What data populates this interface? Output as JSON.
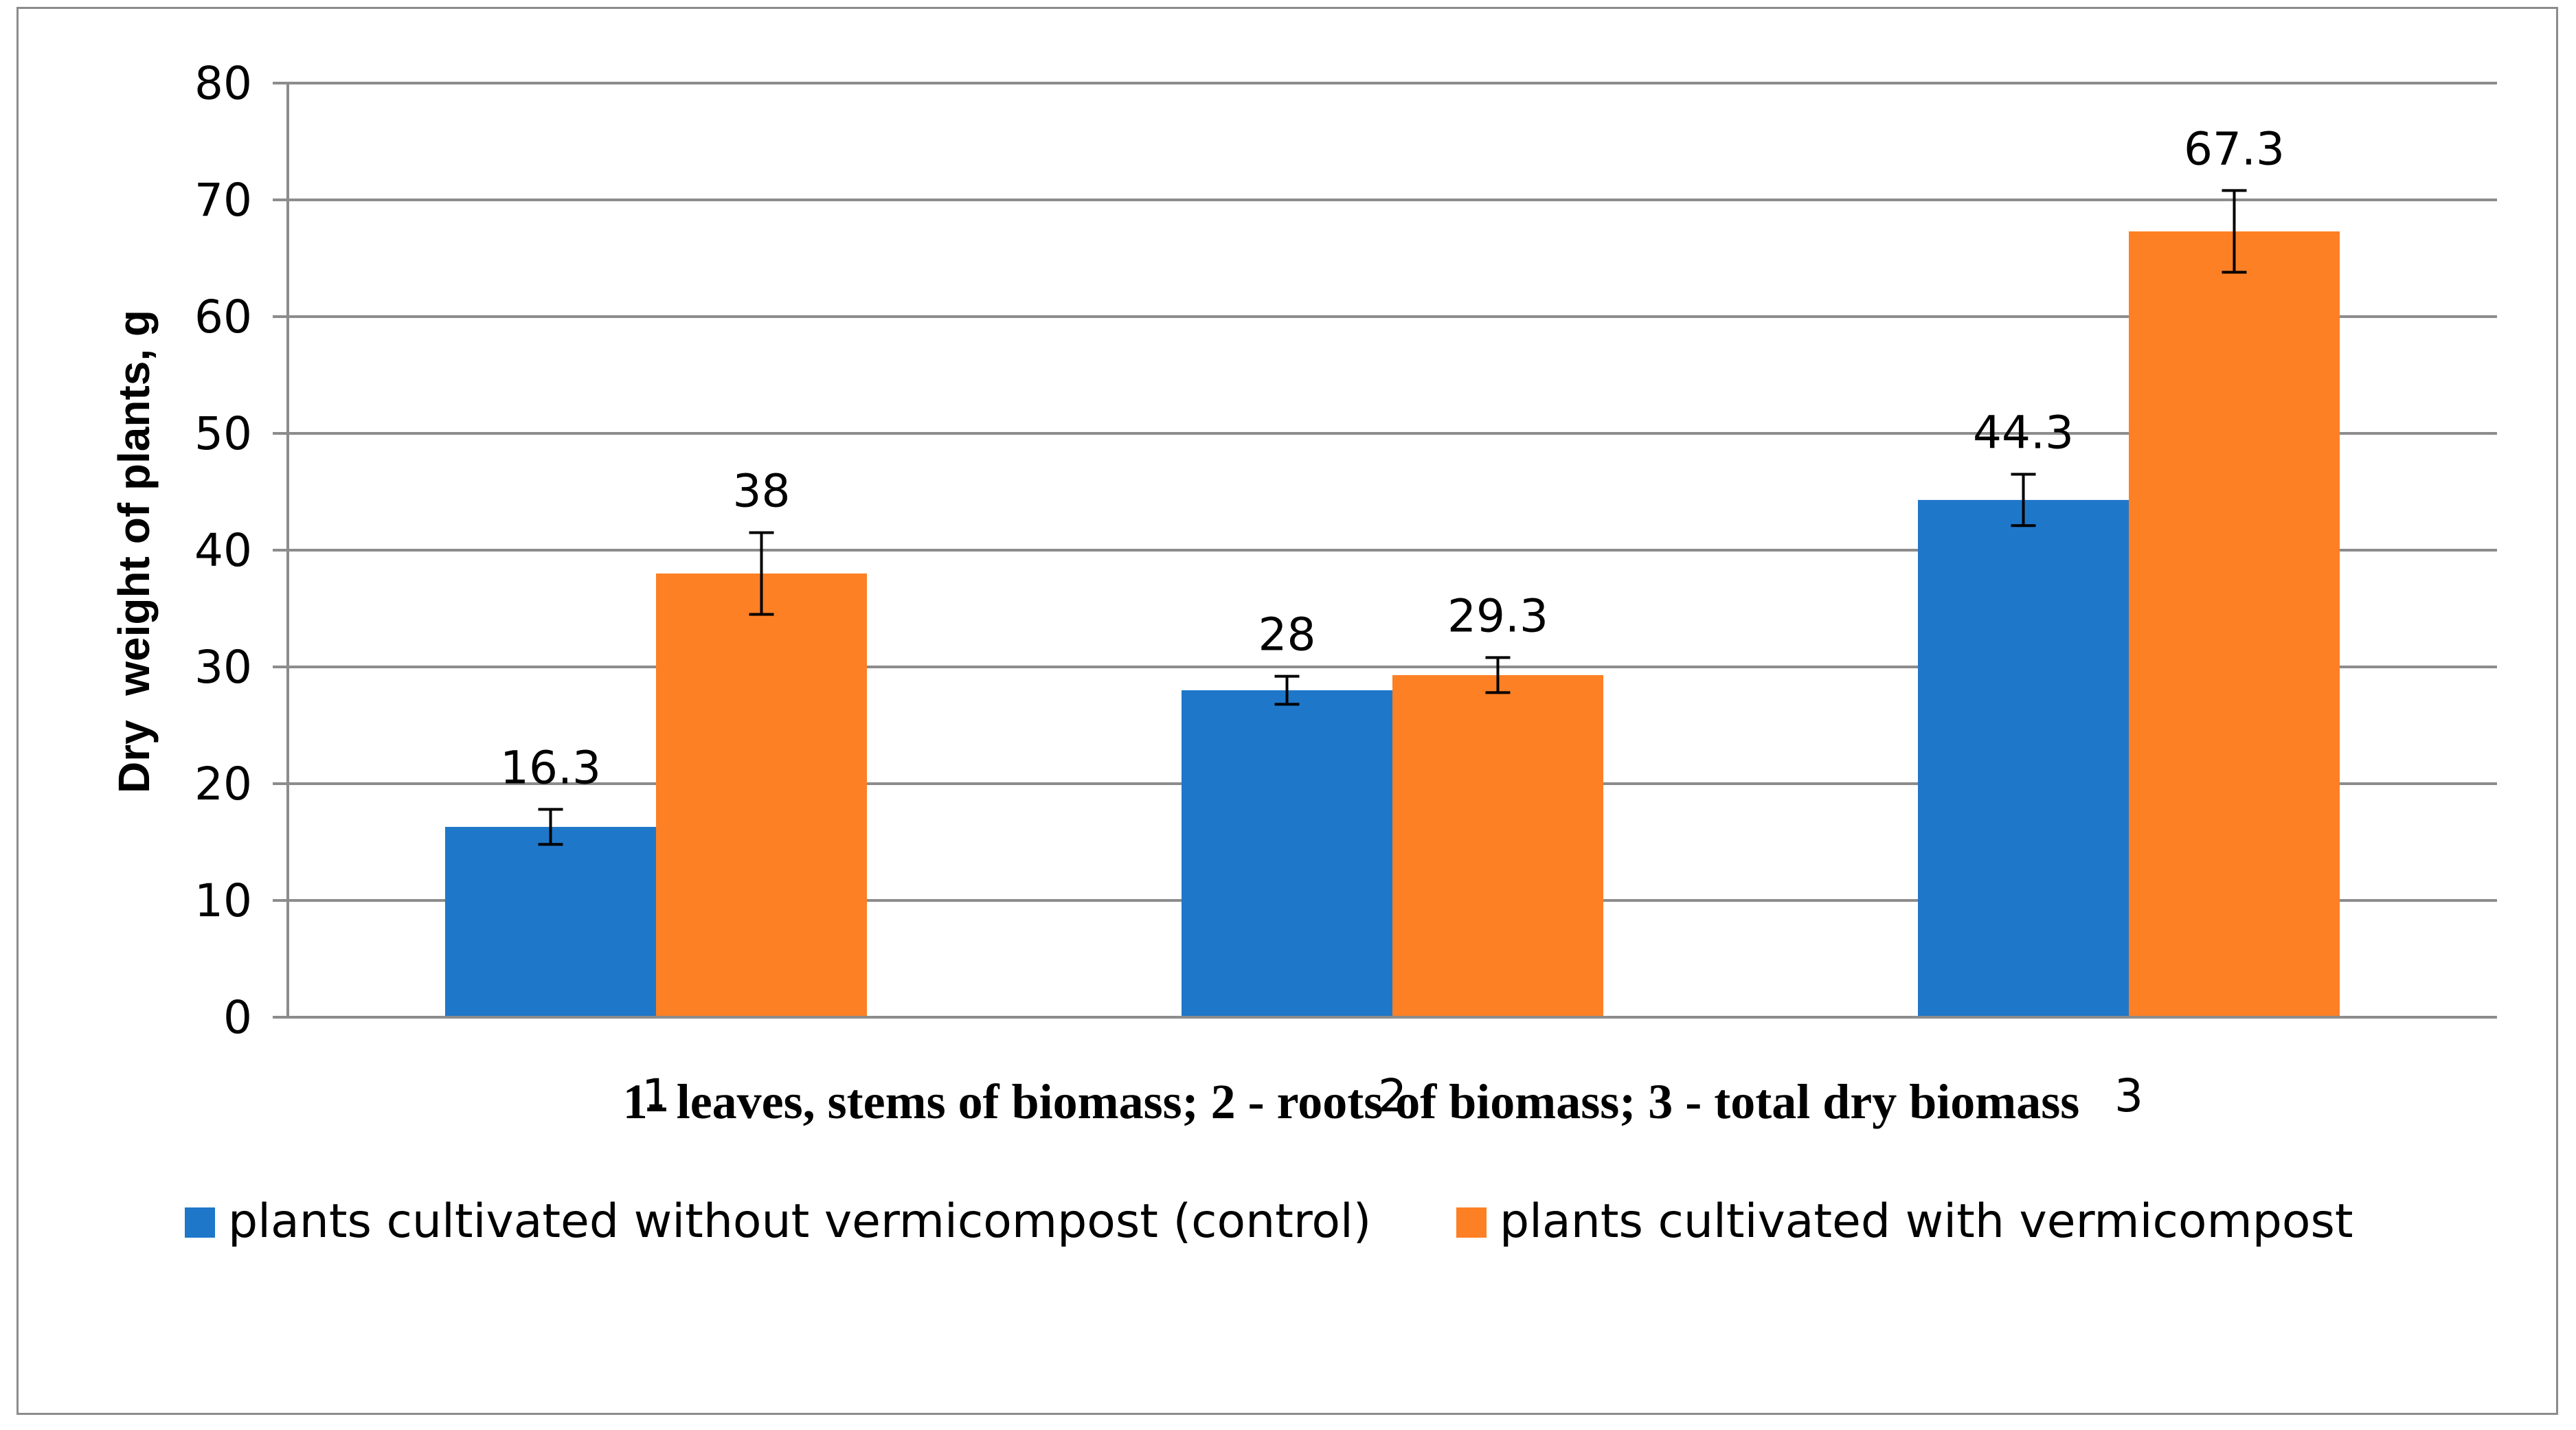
{
  "chart_data": {
    "type": "bar",
    "categories": [
      "1",
      "2",
      "3"
    ],
    "series": [
      {
        "name": "plants cultivated without vermicompost (control)",
        "color": "#1f77c9",
        "values": [
          16.3,
          28,
          44.3
        ],
        "labels": [
          "16.3",
          "28",
          "44.3"
        ],
        "errors": [
          1.5,
          1.2,
          2.2
        ]
      },
      {
        "name": "plants cultivated with vermicompost",
        "color": "#fd8025",
        "values": [
          38,
          29.3,
          67.3
        ],
        "labels": [
          "38",
          "29.3",
          "67.3"
        ],
        "errors": [
          3.5,
          1.5,
          3.5
        ]
      }
    ],
    "title": "",
    "xlabel": "1- leaves, stems of biomass; 2 - roots of biomass; 3 - total dry biomass",
    "ylabel": "Dry  weight of plants, g",
    "ylim": [
      0,
      80
    ],
    "yticks": [
      0,
      10,
      20,
      30,
      40,
      50,
      60,
      70,
      80
    ],
    "ytick_labels": [
      "0",
      "10",
      "20",
      "30",
      "40",
      "50",
      "60",
      "70",
      "80"
    ],
    "grid": true,
    "legend_position": "bottom"
  }
}
